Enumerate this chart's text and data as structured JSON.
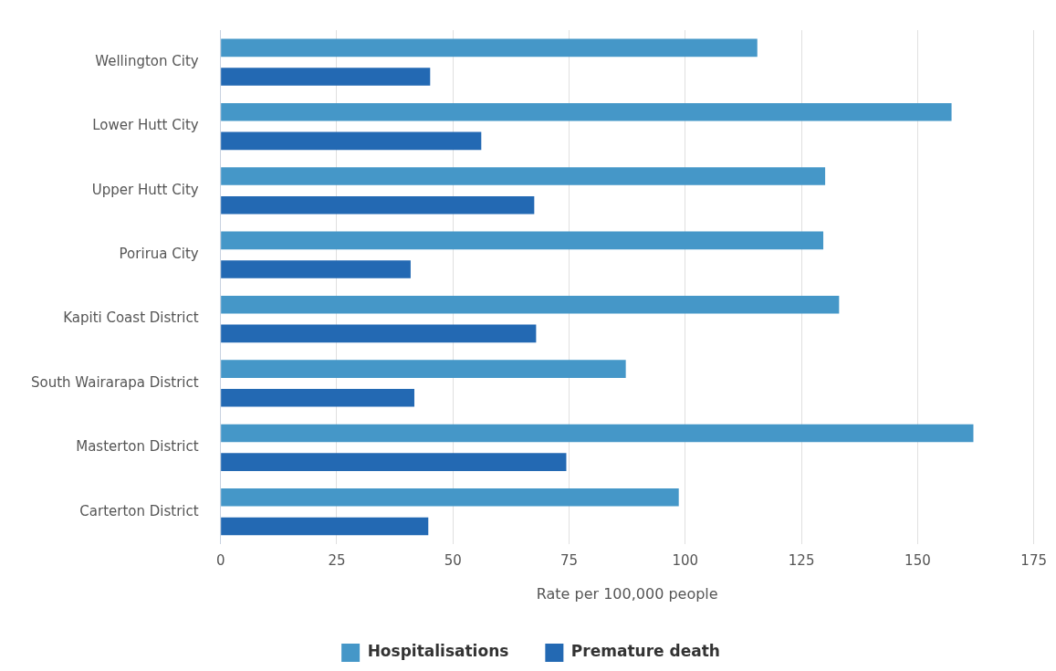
{
  "chart_data": {
    "type": "bar",
    "orientation": "horizontal",
    "xlabel": "Rate per 100,000 people",
    "categories": [
      "Wellington City",
      "Lower Hutt City",
      "Upper Hutt City",
      "Porirua City",
      "Kapiti Coast District",
      "South Wairarapa District",
      "Masterton District",
      "Carterton District"
    ],
    "series": [
      {
        "name": "Hospitalisations",
        "color": "#4597c8",
        "values": [
          115.5,
          157.3,
          130.1,
          129.7,
          133.1,
          87.2,
          162,
          98.6
        ]
      },
      {
        "name": "Premature death",
        "color": "#2369b3",
        "values": [
          45.1,
          56.1,
          67.5,
          40.9,
          67.9,
          41.7,
          74.4,
          44.7
        ]
      }
    ],
    "xlim": [
      0,
      175
    ],
    "xticks": [
      0,
      25,
      50,
      75,
      100,
      125,
      150,
      175
    ],
    "grid": "x",
    "legend": "bottom"
  }
}
